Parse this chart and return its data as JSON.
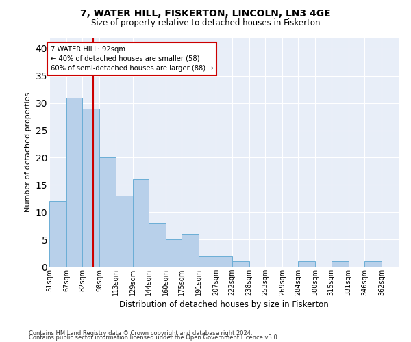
{
  "title": "7, WATER HILL, FISKERTON, LINCOLN, LN3 4GE",
  "subtitle": "Size of property relative to detached houses in Fiskerton",
  "xlabel": "Distribution of detached houses by size in Fiskerton",
  "ylabel": "Number of detached properties",
  "bar_values": [
    12,
    31,
    29,
    20,
    13,
    16,
    8,
    5,
    6,
    2,
    2,
    1,
    0,
    0,
    0,
    1,
    0,
    1,
    0,
    1
  ],
  "bar_labels": [
    "51sqm",
    "67sqm",
    "82sqm",
    "98sqm",
    "113sqm",
    "129sqm",
    "144sqm",
    "160sqm",
    "175sqm",
    "191sqm",
    "207sqm",
    "222sqm",
    "238sqm",
    "253sqm",
    "269sqm",
    "284sqm",
    "300sqm",
    "315sqm",
    "331sqm",
    "346sqm",
    "362sqm"
  ],
  "bar_color": "#b8d0ea",
  "bar_edge_color": "#6baed6",
  "annotation_box_color": "#cc0000",
  "annotation_line_color": "#cc0000",
  "annotation_text_line1": "7 WATER HILL: 92sqm",
  "annotation_text_line2": "← 40% of detached houses are smaller (58)",
  "annotation_text_line3": "60% of semi-detached houses are larger (88) →",
  "vline_x": 92,
  "ylim": [
    0,
    42
  ],
  "yticks": [
    0,
    5,
    10,
    15,
    20,
    25,
    30,
    35,
    40
  ],
  "bin_edges": [
    51,
    67,
    82,
    98,
    113,
    129,
    144,
    160,
    175,
    191,
    207,
    222,
    238,
    253,
    269,
    284,
    300,
    315,
    331,
    346,
    362
  ],
  "bg_color": "#e8eef8",
  "grid_color": "#ffffff",
  "footer_line1": "Contains HM Land Registry data © Crown copyright and database right 2024.",
  "footer_line2": "Contains public sector information licensed under the Open Government Licence v3.0."
}
